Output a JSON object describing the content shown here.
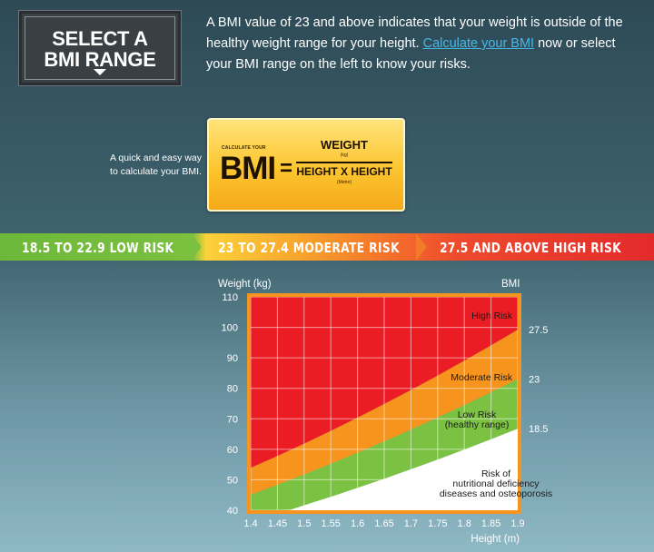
{
  "select_box": {
    "line1": "SELECT A",
    "line2": "BMI RANGE"
  },
  "intro": {
    "text_before": "A BMI value of 23 and above indicates that your weight is outside of the healthy weight range for your height. ",
    "link_label": "Calculate your BMI",
    "text_after": " now or select your BMI range on the left to know your risks."
  },
  "quick_text": {
    "line1": "A quick and easy way",
    "line2": "to calculate your BMI."
  },
  "formula": {
    "calc_label": "CALCULATE YOUR",
    "bmi": "BMI",
    "equals": "=",
    "numerator": "WEIGHT",
    "numerator_unit": "(kg)",
    "denominator": "HEIGHT X HEIGHT",
    "denominator_unit": "(Metre)"
  },
  "risk_tabs": [
    {
      "label": "18.5 TO 22.9  LOW RISK",
      "color": "#6db83a"
    },
    {
      "label": "23 TO 27.4  MODERATE RISK",
      "color": "#f8a42d"
    },
    {
      "label": "27.5 AND ABOVE  HIGH RISK",
      "color": "#e32a2c"
    }
  ],
  "chart_data": {
    "type": "area",
    "xlabel": "Height (m)",
    "ylabel": "Weight (kg)",
    "right_axis_label": "BMI",
    "xlim": [
      1.4,
      1.9
    ],
    "ylim": [
      40,
      110
    ],
    "x_ticks": [
      "1.4",
      "1.45",
      "1.5",
      "1.55",
      "1.6",
      "1.65",
      "1.7",
      "1.75",
      "1.8",
      "1.85",
      "1.9"
    ],
    "y_ticks": [
      "40",
      "50",
      "60",
      "70",
      "80",
      "90",
      "100",
      "110"
    ],
    "bmi_lines": [
      {
        "bmi": 18.5,
        "label": "18.5"
      },
      {
        "bmi": 23,
        "label": "23"
      },
      {
        "bmi": 27.5,
        "label": "27.5"
      }
    ],
    "regions": [
      {
        "name": "Risk of nutritional deficiency diseases and osteoporosis",
        "lines": [
          "Risk of",
          "nutritional deficiency",
          "diseases and osteoporosis"
        ],
        "color": "#ffffff"
      },
      {
        "name": "Low Risk (healthy range)",
        "lines": [
          "Low Risk",
          "(healthy range)"
        ],
        "color": "#7cc242"
      },
      {
        "name": "Moderate Risk",
        "lines": [
          "Moderate Risk"
        ],
        "color": "#f7941e"
      },
      {
        "name": "High Risk",
        "lines": [
          "High Risk"
        ],
        "color": "#ec1c24"
      }
    ],
    "chart_border_color": "#f7941e"
  }
}
